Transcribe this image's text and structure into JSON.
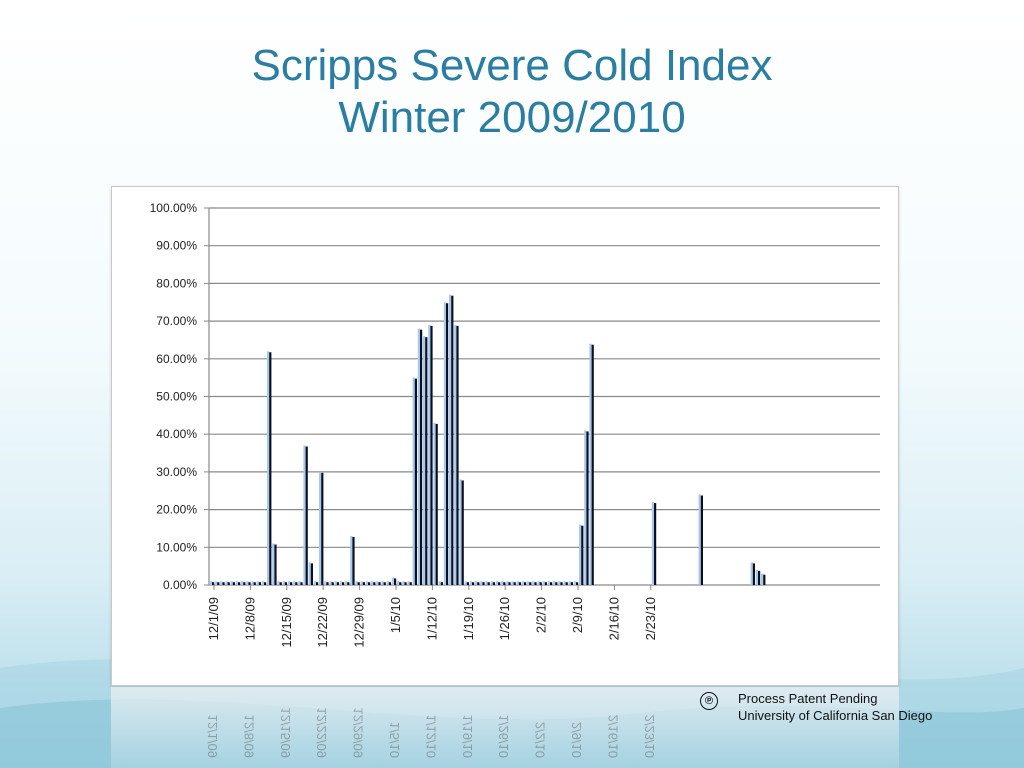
{
  "title": {
    "line1": "Scripps Severe Cold Index",
    "line2": "Winter 2009/2010"
  },
  "patent": {
    "symbol": "℗",
    "line1": "Process Patent Pending",
    "line2": "University of California San Diego"
  },
  "colors": {
    "title": "#2b7ea1",
    "bar_dark": "#0b1020",
    "bar_light": "#a9c8ee",
    "grid": "#8a8a8a"
  },
  "chart_data": {
    "type": "bar",
    "title": "",
    "xlabel": "",
    "ylabel": "",
    "ylim": [
      0,
      100
    ],
    "y_ticks": [
      "0.00%",
      "10.00%",
      "20.00%",
      "30.00%",
      "40.00%",
      "50.00%",
      "60.00%",
      "70.00%",
      "80.00%",
      "90.00%",
      "100.00%"
    ],
    "x_ticks": [
      "12/1/09",
      "12/8/09",
      "12/15/09",
      "12/22/09",
      "12/29/09",
      "1/5/10",
      "1/12/10",
      "1/19/10",
      "1/26/10",
      "2/2/10",
      "2/9/10",
      "2/16/10",
      "2/23/10"
    ],
    "grid": true,
    "legend": "none",
    "series": [
      {
        "values": [
          1,
          1,
          1,
          1,
          1,
          1,
          1,
          1,
          1,
          1,
          1,
          62,
          11,
          1,
          1,
          1,
          1,
          1,
          37,
          6,
          1,
          30,
          1,
          1,
          1,
          1,
          1,
          13,
          1,
          1,
          1,
          1,
          1,
          1,
          1,
          2,
          1,
          1,
          1,
          55,
          68,
          66,
          69,
          43,
          1,
          75,
          77,
          69,
          28,
          1,
          1,
          1,
          1,
          1,
          1,
          1,
          1,
          1,
          1,
          1,
          1,
          1,
          1,
          1,
          1,
          1,
          1,
          1,
          1,
          1,
          1,
          16,
          41,
          64,
          0,
          0,
          0,
          0,
          0,
          0,
          0,
          0,
          0,
          0,
          0,
          22,
          0,
          0,
          0,
          0,
          0,
          0,
          0,
          0,
          24,
          0,
          0,
          0,
          0,
          0,
          0,
          0,
          0,
          0,
          6,
          4,
          3
        ]
      }
    ]
  }
}
